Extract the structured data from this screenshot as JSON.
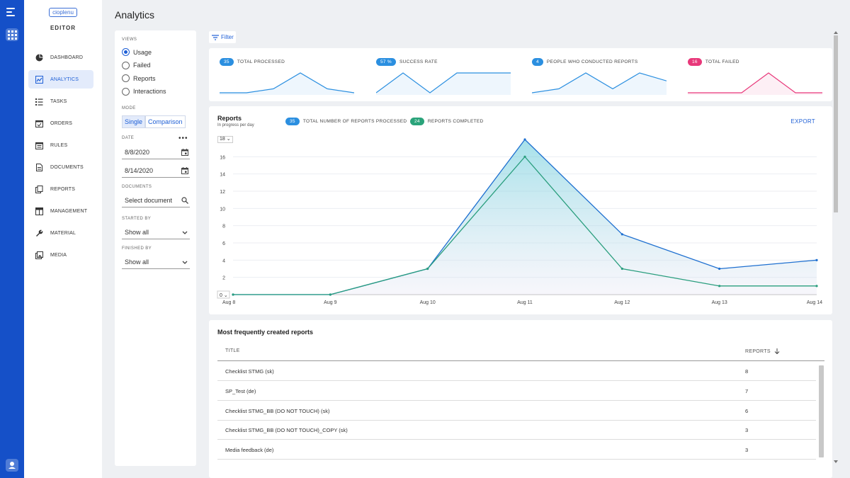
{
  "brand": {
    "logo_text": "cioplenu",
    "subtitle": "EDITOR"
  },
  "nav": {
    "items": [
      {
        "label": "DASHBOARD",
        "icon": "pie-chart-icon",
        "active": false
      },
      {
        "label": "ANALYTICS",
        "icon": "line-chart-icon",
        "active": true
      },
      {
        "label": "TASKS",
        "icon": "checklist-icon",
        "active": false
      },
      {
        "label": "ORDERS",
        "icon": "calendar-check-icon",
        "active": false
      },
      {
        "label": "RULES",
        "icon": "calendar-icon",
        "active": false
      },
      {
        "label": "DOCUMENTS",
        "icon": "document-icon",
        "active": false
      },
      {
        "label": "REPORTS",
        "icon": "copy-icon",
        "active": false
      },
      {
        "label": "MANAGEMENT",
        "icon": "table-icon",
        "active": false
      },
      {
        "label": "MATERIAL",
        "icon": "wrench-icon",
        "active": false
      },
      {
        "label": "MEDIA",
        "icon": "image-icon",
        "active": false
      }
    ]
  },
  "page": {
    "title": "Analytics"
  },
  "filters": {
    "views_label": "VIEWS",
    "views": [
      "Usage",
      "Failed",
      "Reports",
      "Interactions"
    ],
    "selected_view": "Usage",
    "mode_label": "MODE",
    "mode_options": [
      "Single",
      "Comparison"
    ],
    "selected_mode": "Single",
    "date_label": "DATE",
    "date_menu": "•••",
    "date_from": "8/8/2020",
    "date_to": "8/14/2020",
    "documents_label": "DOCUMENTS",
    "documents_value": "Select document",
    "started_by_label": "STARTED BY",
    "started_by_value": "Show all",
    "finished_by_label": "FINISHED BY",
    "finished_by_value": "Show all"
  },
  "toolbar": {
    "filter_label": "Filter"
  },
  "metrics": [
    {
      "badge": "35",
      "label": "TOTAL PROCESSED",
      "color": "#2b8fe0",
      "values": [
        0,
        0,
        1,
        5,
        1,
        0
      ]
    },
    {
      "badge": "57 %",
      "label": "SUCCESS RATE",
      "color": "#2b8fe0",
      "values": [
        0,
        5,
        0,
        5,
        5,
        5
      ]
    },
    {
      "badge": "4",
      "label": "PEOPLE WHO CONDUCTED REPORTS",
      "color": "#2b8fe0",
      "values": [
        0,
        1,
        5,
        1,
        5,
        3
      ]
    },
    {
      "badge": "16",
      "label": "TOTAL FAILED",
      "color": "#e8387a",
      "values": [
        0,
        0,
        0,
        5,
        0,
        0
      ]
    }
  ],
  "reports_card": {
    "title": "Reports",
    "subtitle": "In progress per day",
    "legend": [
      {
        "badge": "35",
        "label": "TOTAL NUMBER OF REPORTS PROCESSED",
        "color": "#2b8fe0"
      },
      {
        "badge": "24",
        "label": "REPORTS COMPLETED",
        "color": "#2aa37a"
      }
    ],
    "export_label": "EXPORT",
    "ylim_label": "18 ⌄"
  },
  "chart_data": {
    "type": "line",
    "title": "Reports",
    "subtitle": "In progress per day",
    "x": [
      "Aug 8",
      "Aug 9",
      "Aug 10",
      "Aug 11",
      "Aug 12",
      "Aug 13",
      "Aug 14"
    ],
    "yticks": [
      0,
      2,
      4,
      6,
      8,
      10,
      12,
      14,
      16
    ],
    "ylim": [
      0,
      18
    ],
    "grid": true,
    "series": [
      {
        "name": "TOTAL NUMBER OF REPORTS PROCESSED",
        "values": [
          0,
          0,
          3,
          18,
          7,
          3,
          4
        ],
        "color": "#1e6fd0"
      },
      {
        "name": "REPORTS COMPLETED",
        "values": [
          0,
          0,
          3,
          16,
          3,
          1,
          1
        ],
        "color": "#2a9e7e"
      }
    ]
  },
  "table": {
    "title": "Most frequently created reports",
    "col_title": "TITLE",
    "col_reports": "REPORTS",
    "rows": [
      {
        "title": "Checklist STMG (sk)",
        "reports": "8"
      },
      {
        "title": "SP_Test (de)",
        "reports": "7"
      },
      {
        "title": "Checklist STMG_BB (DO NOT TOUCH) (sk)",
        "reports": "6"
      },
      {
        "title": "Checklist STMG_BB (DO NOT TOUCH)_COPY (sk)",
        "reports": "3"
      },
      {
        "title": "Media feedback (de)",
        "reports": "3"
      }
    ]
  }
}
